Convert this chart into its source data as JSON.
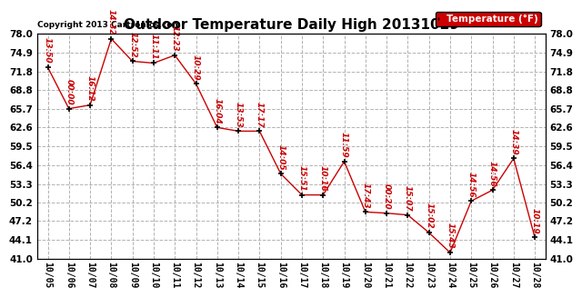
{
  "title": "Outdoor Temperature Daily High 20131029",
  "copyright": "Copyright 2013 Cartronics.com",
  "legend_label": "Temperature (°F)",
  "background_color": "#ffffff",
  "line_color": "#cc0000",
  "point_color": "#000000",
  "dates": [
    "10/05",
    "10/06",
    "10/07",
    "10/08",
    "10/09",
    "10/10",
    "10/11",
    "10/12",
    "10/13",
    "10/14",
    "10/15",
    "10/16",
    "10/17",
    "10/18",
    "10/19",
    "10/20",
    "10/21",
    "10/22",
    "10/23",
    "10/24",
    "10/25",
    "10/26",
    "10/27",
    "10/28"
  ],
  "values": [
    72.5,
    65.7,
    66.3,
    77.2,
    73.5,
    73.2,
    74.5,
    69.8,
    62.6,
    62.0,
    62.0,
    55.0,
    51.5,
    51.5,
    57.0,
    48.7,
    48.5,
    48.2,
    45.3,
    42.0,
    50.5,
    52.3,
    57.5,
    44.5
  ],
  "time_labels": [
    "13:50",
    "00:00",
    "16:12",
    "14:32",
    "12:52",
    "11:11",
    "12:23",
    "10:29",
    "16:04",
    "13:53",
    "17:17",
    "14:05",
    "15:51",
    "10:16",
    "11:59",
    "17:43",
    "00:20",
    "15:07",
    "15:02",
    "15:43",
    "14:56",
    "14:56",
    "14:39",
    "10:19"
  ],
  "ylim": [
    41.0,
    78.0
  ],
  "yticks": [
    41.0,
    44.1,
    47.2,
    50.2,
    53.3,
    56.4,
    59.5,
    62.6,
    65.7,
    68.8,
    71.8,
    74.9,
    78.0
  ],
  "grid_color": "#aaaaaa",
  "title_fontsize": 11,
  "label_fontsize": 6.5,
  "legend_bg": "#cc0000",
  "legend_text_color": "#ffffff"
}
